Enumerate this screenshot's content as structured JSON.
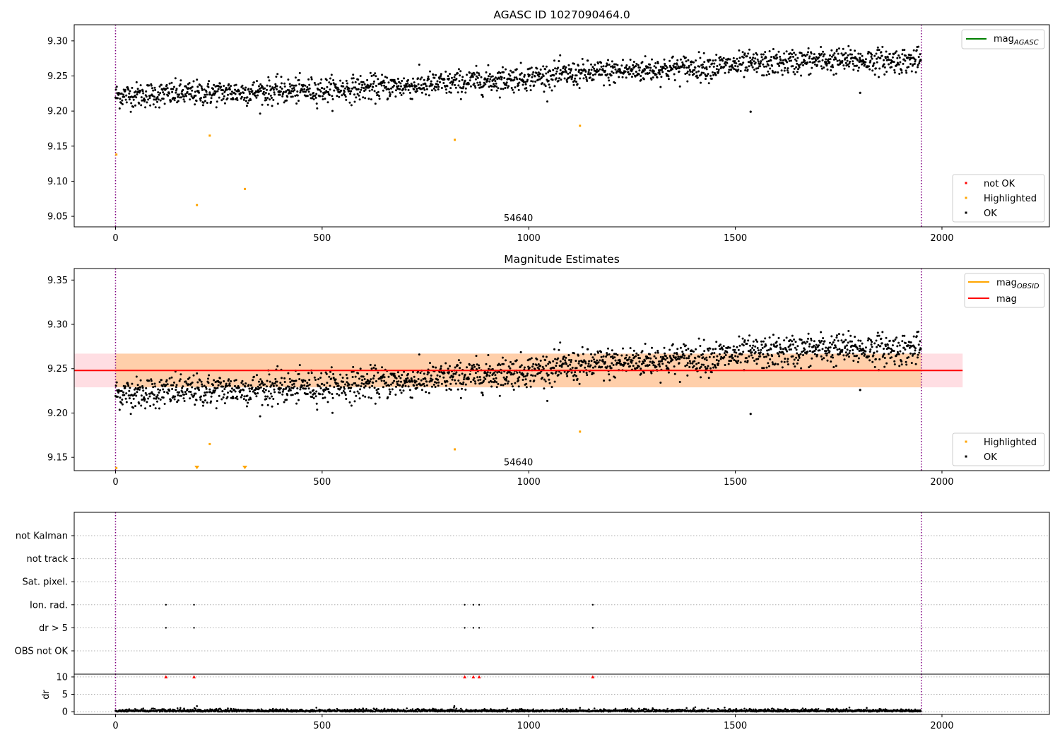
{
  "chart_data": [
    {
      "type": "scatter",
      "title": "AGASC ID 1027090464.0",
      "xlabel": "",
      "ylabel": "",
      "xlim": [
        -100,
        2260
      ],
      "ylim": [
        9.035,
        9.323
      ],
      "xticks": [
        0,
        500,
        1000,
        1500,
        2000
      ],
      "xtick_labels": [
        "0",
        "500",
        "1000",
        "1500",
        "2000"
      ],
      "yticks": [
        9.05,
        9.1,
        9.15,
        9.2,
        9.25,
        9.3
      ],
      "ytick_labels": [
        "9.05",
        "9.10",
        "9.15",
        "9.20",
        "9.25",
        "9.30"
      ],
      "obs_boundaries": [
        0,
        1950
      ],
      "obs_label": {
        "x": 975,
        "y": 9.043,
        "text": "54640"
      },
      "trend": {
        "x": [
          0,
          500,
          750,
          1000,
          1250,
          1500,
          1700,
          1950
        ],
        "y": [
          9.222,
          9.23,
          9.237,
          9.248,
          9.258,
          9.265,
          9.272,
          9.272
        ]
      },
      "noise": 0.009,
      "n_points": 1950,
      "ok_outliers": [
        {
          "x": 1537,
          "y": 9.199
        },
        {
          "x": 1802,
          "y": 9.226
        }
      ],
      "highlighted": [
        {
          "x": 2,
          "y": 9.138
        },
        {
          "x": 197,
          "y": 9.066
        },
        {
          "x": 228,
          "y": 9.165
        },
        {
          "x": 313,
          "y": 9.089
        },
        {
          "x": 821,
          "y": 9.159
        },
        {
          "x": 1124,
          "y": 9.179
        }
      ],
      "not_ok": [],
      "legend_lines": [
        {
          "name": "mag",
          "subscript": "AGASC",
          "color": "#008000"
        }
      ],
      "legend_markers": [
        {
          "name": "not OK",
          "color": "#ff0000"
        },
        {
          "name": "Highlighted",
          "color": "#ffa500"
        },
        {
          "name": "OK",
          "color": "#000000"
        }
      ]
    },
    {
      "type": "scatter",
      "title": "Magnitude Estimates",
      "xlabel": "",
      "ylabel": "",
      "xlim": [
        -100,
        2260
      ],
      "ylim": [
        9.135,
        9.363
      ],
      "xticks": [
        0,
        500,
        1000,
        1500,
        2000
      ],
      "xtick_labels": [
        "0",
        "500",
        "1000",
        "1500",
        "2000"
      ],
      "yticks": [
        9.15,
        9.2,
        9.25,
        9.3,
        9.35
      ],
      "ytick_labels": [
        "9.15",
        "9.20",
        "9.25",
        "9.30",
        "9.35"
      ],
      "obs_boundaries": [
        0,
        1950
      ],
      "obs_label": {
        "x": 975,
        "y": 9.141,
        "text": "54640"
      },
      "mag_line": {
        "y": 9.248,
        "x_range": [
          -100,
          2050
        ],
        "color": "#ff0000",
        "band": [
          9.229,
          9.267
        ],
        "band_color": "#ffb6c1"
      },
      "mag_obsid_band": {
        "x_range": [
          0,
          1950
        ],
        "band": [
          9.229,
          9.267
        ],
        "color": "#ffa500"
      },
      "highlighted": [
        {
          "x": 2,
          "y": 9.138
        },
        {
          "x": 228,
          "y": 9.165
        },
        {
          "x": 821,
          "y": 9.159
        },
        {
          "x": 1124,
          "y": 9.179
        }
      ],
      "highlighted_clipped": [
        {
          "x": 197
        },
        {
          "x": 313
        }
      ],
      "ok_outliers": [
        {
          "x": 1537,
          "y": 9.199
        },
        {
          "x": 1802,
          "y": 9.226
        }
      ],
      "legend_lines": [
        {
          "name": "mag",
          "subscript": "OBSID",
          "color": "#ffa500"
        },
        {
          "name": "mag",
          "subscript": "",
          "color": "#ff0000"
        }
      ],
      "legend_markers": [
        {
          "name": "Highlighted",
          "color": "#ffa500"
        },
        {
          "name": "OK",
          "color": "#000000"
        }
      ]
    },
    {
      "type": "scatter",
      "title": "",
      "xlim": [
        -100,
        2260
      ],
      "obs_boundaries": [
        0,
        1950
      ],
      "flag_rows": [
        "not Kalman",
        "not track",
        "Sat. pixel.",
        "Ion. rad.",
        "dr > 5",
        "OBS not OK"
      ],
      "flag_points": {
        "Ion. rad.": [
          122,
          190,
          845,
          866,
          880,
          1155
        ],
        "dr > 5": [
          122,
          190,
          845,
          866,
          880,
          1155
        ]
      }
    },
    {
      "type": "scatter",
      "title": "",
      "xlabel": "",
      "ylabel": "dr",
      "xlim": [
        -100,
        2260
      ],
      "ylim": [
        -0.8,
        10.8
      ],
      "xticks": [
        0,
        500,
        1000,
        1500,
        2000
      ],
      "xtick_labels": [
        "0",
        "500",
        "1000",
        "1500",
        "2000"
      ],
      "yticks": [
        0,
        5,
        10
      ],
      "ytick_labels": [
        "0",
        "5",
        "10"
      ],
      "obs_boundaries": [
        0,
        1950
      ],
      "clipped_markers": [
        122,
        190,
        845,
        866,
        880,
        1155
      ],
      "spikes": [
        {
          "x": 197,
          "y": 1.6
        },
        {
          "x": 820,
          "y": 1.6
        },
        {
          "x": 1124,
          "y": 1.1
        }
      ],
      "noise": 0.35
    }
  ]
}
